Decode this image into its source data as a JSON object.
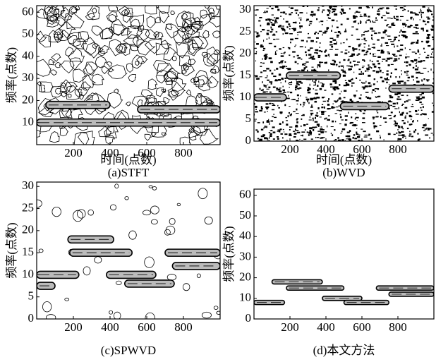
{
  "chart_data": [
    {
      "type": "contour",
      "caption": "(a)STFT",
      "xlabel": "时间(点数)",
      "ylabel": "频率(点数)",
      "xlim": [
        0,
        1000
      ],
      "ylim": [
        0,
        63
      ],
      "xticks": [
        200,
        400,
        600,
        800
      ],
      "yticks": [
        10,
        20,
        30,
        40,
        50,
        60
      ],
      "ridges": [
        {
          "x": [
            50,
            400
          ],
          "y": 18
        },
        {
          "x": [
            0,
            1000
          ],
          "y": 10
        },
        {
          "x": [
            550,
            1000
          ],
          "y": 16
        }
      ]
    },
    {
      "type": "contour",
      "caption": "(b)WVD",
      "xlabel": "时间(点数)",
      "ylabel": "频率(点数)",
      "xlim": [
        0,
        1000
      ],
      "ylim": [
        0,
        31
      ],
      "xticks": [
        200,
        400,
        600,
        800
      ],
      "yticks": [
        0,
        5,
        10,
        15,
        20,
        25,
        30
      ],
      "ridges": [
        {
          "x": [
            0,
            180
          ],
          "y": 10
        },
        {
          "x": [
            180,
            480
          ],
          "y": 15
        },
        {
          "x": [
            480,
            750
          ],
          "y": 8
        },
        {
          "x": [
            750,
            1000
          ],
          "y": 12
        }
      ]
    },
    {
      "type": "contour",
      "caption": "(c)SPWVD",
      "ylabel": "频率(点数)",
      "xlim": [
        0,
        1000
      ],
      "ylim": [
        0,
        31
      ],
      "xticks": [
        200,
        400,
        600,
        800
      ],
      "yticks": [
        0,
        5,
        10,
        15,
        20,
        25,
        30
      ],
      "ridges": [
        {
          "x": [
            170,
            420
          ],
          "y": 18
        },
        {
          "x": [
            180,
            520
          ],
          "y": 15
        },
        {
          "x": [
            0,
            230
          ],
          "y": 10
        },
        {
          "x": [
            0,
            100
          ],
          "y": 7.5
        },
        {
          "x": [
            380,
            650
          ],
          "y": 10
        },
        {
          "x": [
            480,
            750
          ],
          "y": 8
        },
        {
          "x": [
            700,
            1000
          ],
          "y": 15
        },
        {
          "x": [
            740,
            1000
          ],
          "y": 12
        }
      ]
    },
    {
      "type": "contour",
      "caption": "(d)本文方法",
      "ylabel": "频率(点数)",
      "xlim": [
        0,
        1000
      ],
      "ylim": [
        0,
        63
      ],
      "xticks": [
        200,
        400,
        600,
        800
      ],
      "yticks": [
        0,
        10,
        20,
        30,
        40,
        50,
        60
      ],
      "ridges": [
        {
          "x": [
            100,
            380
          ],
          "y": 18
        },
        {
          "x": [
            180,
            500
          ],
          "y": 15
        },
        {
          "x": [
            0,
            170
          ],
          "y": 8
        },
        {
          "x": [
            380,
            600
          ],
          "y": 10
        },
        {
          "x": [
            500,
            750
          ],
          "y": 8
        },
        {
          "x": [
            680,
            1000
          ],
          "y": 15
        },
        {
          "x": [
            750,
            1000
          ],
          "y": 12
        }
      ]
    }
  ]
}
